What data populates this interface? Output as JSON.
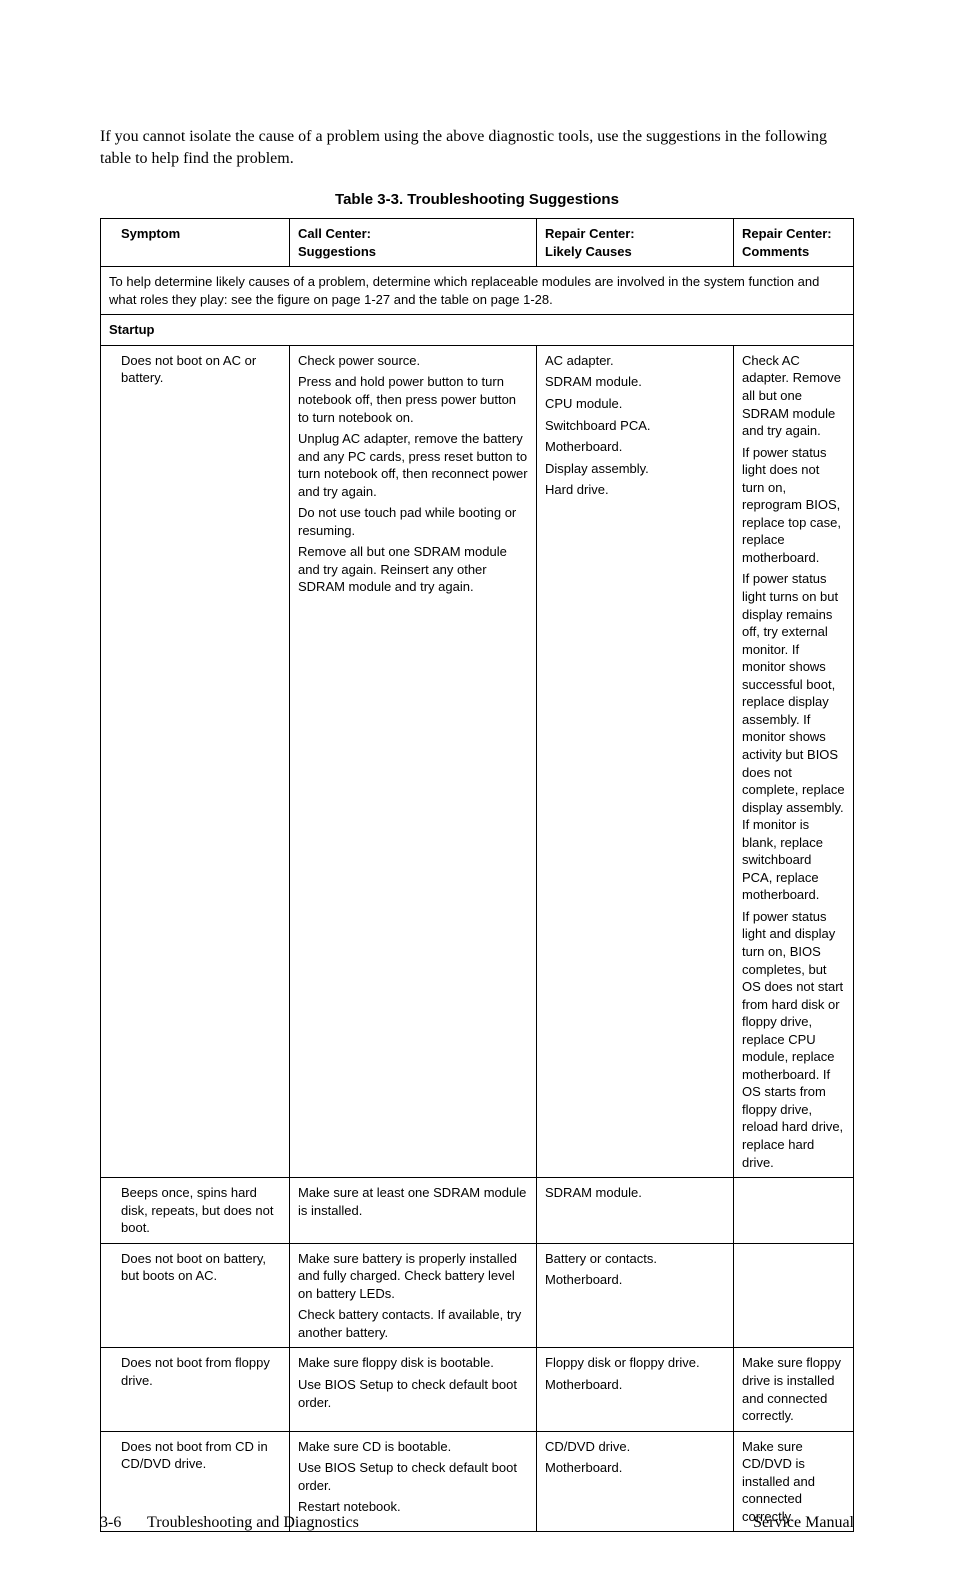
{
  "intro_text": "If you cannot isolate the cause of a problem using the above diagnostic tools, use the suggestions in the following table to help find the problem.",
  "table_caption": "Table 3-3. Troubleshooting Suggestions",
  "headers": {
    "h1": "Symptom",
    "h2a": "Call Center:",
    "h2b": "Suggestions",
    "h3a": "Repair Center:",
    "h3b": "Likely Causes",
    "h4a": "Repair Center:",
    "h4b": "Comments"
  },
  "note_row": "To help determine likely causes of a problem, determine which replaceable modules are involved in the system function and what roles they play: see the figure on page 1-27 and the table on page 1-28.",
  "section_startup": "Startup",
  "rows": [
    {
      "symptom": "Does not boot on AC or battery.",
      "suggestions": [
        "Check power source.",
        "Press and hold power button to turn notebook off, then press power button to turn notebook on.",
        "Unplug AC adapter, remove the battery and any PC cards, press reset button to turn notebook off, then reconnect power and try again.",
        "Do not use touch pad while booting or resuming.",
        "Remove all but one SDRAM module and try again. Reinsert any other SDRAM module and try again."
      ],
      "causes": [
        "AC adapter.",
        "SDRAM module.",
        "CPU module.",
        "Switchboard PCA.",
        "Motherboard.",
        "Display assembly.",
        "Hard drive."
      ],
      "comments": [
        "Check AC adapter. Remove all but one SDRAM module and try again.",
        "If power status light does not turn on, reprogram BIOS, replace top case, replace motherboard.",
        "If power status light turns on but display remains off, try external monitor. If monitor shows successful boot, replace display assembly. If monitor shows activity but BIOS does not complete, replace display assembly. If monitor is blank, replace switchboard PCA, replace motherboard.",
        "If power status light and display turn on, BIOS completes, but OS does not start from hard disk or floppy drive, replace CPU module, replace motherboard. If OS starts from floppy drive, reload hard drive, replace hard drive."
      ]
    },
    {
      "symptom": "Beeps once, spins hard disk, repeats, but does not boot.",
      "suggestions": [
        "Make sure at least one SDRAM module is installed."
      ],
      "causes": [
        "SDRAM module."
      ],
      "comments": []
    },
    {
      "symptom": "Does not boot on battery, but boots on AC.",
      "suggestions": [
        "Make sure battery is properly installed and fully charged. Check battery level on battery LEDs.",
        "Check battery contacts. If available, try another battery."
      ],
      "causes": [
        "Battery or contacts.",
        "Motherboard."
      ],
      "comments": []
    },
    {
      "symptom": "Does not boot from floppy drive.",
      "suggestions": [
        "Make sure floppy disk is bootable.",
        "Use BIOS Setup to check default boot order."
      ],
      "causes": [
        "Floppy disk or floppy drive.",
        "Motherboard."
      ],
      "comments": [
        "Make sure floppy drive is installed and connected correctly."
      ]
    },
    {
      "symptom": "Does not boot from CD in CD/DVD drive.",
      "suggestions": [
        "Make sure CD is bootable.",
        "Use BIOS Setup to check default boot order.",
        "Restart notebook."
      ],
      "causes": [
        "CD/DVD drive.",
        "Motherboard."
      ],
      "comments": [
        "Make sure CD/DVD is installed and connected correctly."
      ]
    }
  ],
  "footer": {
    "page_number": "3-6",
    "section": "Troubleshooting and Diagnostics",
    "doc": "Service Manual"
  }
}
